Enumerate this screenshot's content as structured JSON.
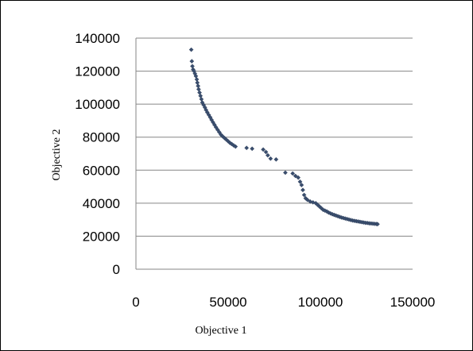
{
  "chart_data": {
    "type": "scatter",
    "title": "",
    "xlabel": "Objective 1",
    "ylabel": "Objective 2",
    "xlim": [
      0,
      150000
    ],
    "ylim": [
      0,
      140000
    ],
    "x_ticks": [
      "0",
      "50000",
      "100000",
      "150000"
    ],
    "y_ticks": [
      "0",
      "20000",
      "40000",
      "60000",
      "80000",
      "100000",
      "120000",
      "140000"
    ],
    "grid": "horizontal",
    "legend": "none",
    "marker_color": "#3a4e6e",
    "series": [
      {
        "points": [
          [
            30000,
            133000
          ],
          [
            30300,
            126000
          ],
          [
            30600,
            123000
          ],
          [
            31000,
            121000
          ],
          [
            31500,
            120000
          ],
          [
            32000,
            118500
          ],
          [
            32500,
            117000
          ],
          [
            33000,
            115000
          ],
          [
            33300,
            113000
          ],
          [
            33700,
            111000
          ],
          [
            34000,
            109000
          ],
          [
            34500,
            107000
          ],
          [
            35000,
            105000
          ],
          [
            35500,
            103000
          ],
          [
            36000,
            101000
          ],
          [
            36700,
            99500
          ],
          [
            37400,
            98000
          ],
          [
            38000,
            96500
          ],
          [
            38700,
            95000
          ],
          [
            39500,
            93500
          ],
          [
            40300,
            92000
          ],
          [
            41000,
            90500
          ],
          [
            41800,
            89000
          ],
          [
            42600,
            87500
          ],
          [
            43400,
            86000
          ],
          [
            44300,
            84500
          ],
          [
            45200,
            83000
          ],
          [
            46100,
            81500
          ],
          [
            47000,
            80500
          ],
          [
            48000,
            79500
          ],
          [
            49000,
            78500
          ],
          [
            50000,
            77500
          ],
          [
            51000,
            76500
          ],
          [
            52000,
            75800
          ],
          [
            53000,
            75000
          ],
          [
            54000,
            74300
          ],
          [
            60000,
            73500
          ],
          [
            63000,
            73000
          ],
          [
            69000,
            72500
          ],
          [
            70500,
            71000
          ],
          [
            71500,
            69000
          ],
          [
            73000,
            67000
          ],
          [
            76000,
            66500
          ],
          [
            81000,
            58500
          ],
          [
            85000,
            58000
          ],
          [
            86500,
            56500
          ],
          [
            88000,
            55500
          ],
          [
            89000,
            53000
          ],
          [
            89800,
            51000
          ],
          [
            90500,
            48000
          ],
          [
            91200,
            45000
          ],
          [
            92000,
            43000
          ],
          [
            93000,
            42000
          ],
          [
            94500,
            41000
          ],
          [
            96000,
            40500
          ],
          [
            97500,
            40000
          ],
          [
            98500,
            39000
          ],
          [
            99500,
            38000
          ],
          [
            100500,
            37000
          ],
          [
            101500,
            36000
          ],
          [
            102500,
            35500
          ],
          [
            103500,
            35000
          ],
          [
            104500,
            34300
          ],
          [
            105500,
            33800
          ],
          [
            106500,
            33300
          ],
          [
            107500,
            32900
          ],
          [
            108500,
            32500
          ],
          [
            109500,
            32100
          ],
          [
            110500,
            31700
          ],
          [
            111500,
            31300
          ],
          [
            112500,
            31000
          ],
          [
            113500,
            30700
          ],
          [
            114500,
            30400
          ],
          [
            115500,
            30100
          ],
          [
            116500,
            29800
          ],
          [
            117500,
            29500
          ],
          [
            118500,
            29300
          ],
          [
            119500,
            29100
          ],
          [
            120500,
            28900
          ],
          [
            121500,
            28700
          ],
          [
            122500,
            28500
          ],
          [
            123500,
            28300
          ],
          [
            124500,
            28100
          ],
          [
            125500,
            28000
          ],
          [
            126500,
            27800
          ],
          [
            127500,
            27700
          ],
          [
            128500,
            27600
          ],
          [
            129500,
            27500
          ],
          [
            130500,
            27400
          ],
          [
            131000,
            27300
          ]
        ]
      }
    ]
  }
}
